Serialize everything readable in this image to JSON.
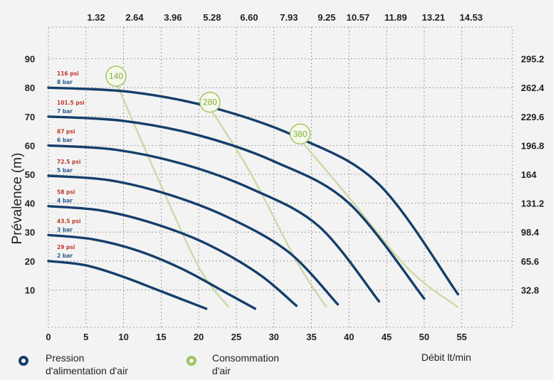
{
  "chart_data": {
    "type": "line",
    "xlabel": "Débit lt/min",
    "ylabel": "Prévalence (m)",
    "xlim": [
      0,
      60
    ],
    "ylim": [
      0,
      95
    ],
    "x_ticks": [
      0,
      5,
      10,
      15,
      20,
      25,
      30,
      35,
      40,
      45,
      50,
      55
    ],
    "y_ticks": [
      10,
      20,
      30,
      40,
      50,
      60,
      70,
      80,
      90
    ],
    "top_axis_ticks": [
      "1.32",
      "2.64",
      "3.96",
      "5.28",
      "6.60",
      "7.93",
      "9.25",
      "10.57",
      "11.89",
      "13.21",
      "14.53"
    ],
    "right_axis_ticks": [
      "295.2",
      "262.4",
      "229.6",
      "196.8",
      "164",
      "131.2",
      "98.4",
      "65.6",
      "32.8"
    ],
    "right_axis_tick_values": [
      90,
      80,
      70,
      60,
      50,
      40,
      30,
      20,
      10
    ],
    "pressure_series": [
      {
        "psi": "29 psi",
        "bar": "2 bar",
        "x": [
          0,
          5,
          10,
          15,
          21
        ],
        "y": [
          20,
          18.5,
          14.5,
          9.5,
          3.5
        ]
      },
      {
        "psi": "43.5 psi",
        "bar": "3 bar",
        "x": [
          0,
          6,
          12,
          18,
          24,
          27.5
        ],
        "y": [
          29,
          27.5,
          23.5,
          17,
          8.5,
          3.5
        ]
      },
      {
        "psi": "58 psi",
        "bar": "4 bar",
        "x": [
          0,
          7,
          14,
          21,
          28,
          33
        ],
        "y": [
          39,
          37.5,
          33,
          26,
          15.5,
          4.5
        ]
      },
      {
        "psi": "72.5 psi",
        "bar": "5 bar",
        "x": [
          0,
          8,
          16,
          24,
          32,
          38.5
        ],
        "y": [
          49.5,
          48,
          43,
          35,
          23,
          5
        ]
      },
      {
        "psi": "87 psi",
        "bar": "6 bar",
        "x": [
          0,
          9,
          18,
          27,
          36,
          44
        ],
        "y": [
          60,
          58.5,
          53.5,
          45,
          32,
          6
        ]
      },
      {
        "psi": "101.5 psi",
        "bar": "7 bar",
        "x": [
          0,
          10,
          20,
          30,
          40,
          50
        ],
        "y": [
          70,
          68.5,
          63.5,
          54.5,
          40,
          7
        ]
      },
      {
        "psi": "116 psi",
        "bar": "8 bar",
        "x": [
          0,
          11,
          22,
          33,
          44,
          54.5
        ],
        "y": [
          80,
          78.5,
          73,
          63,
          46.5,
          8.5
        ]
      }
    ],
    "air_consumption_series": [
      {
        "label": "140",
        "x": [
          9,
          14,
          20,
          24
        ],
        "y": [
          82,
          52,
          18,
          4
        ]
      },
      {
        "label": "280",
        "x": [
          21.5,
          27,
          33,
          37
        ],
        "y": [
          73,
          50,
          20,
          4
        ]
      },
      {
        "label": "380",
        "x": [
          33.5,
          40,
          48,
          54.5
        ],
        "y": [
          62,
          42,
          17,
          4
        ]
      }
    ],
    "legend": [
      {
        "label_line1": "Pression",
        "label_line2": "d'alimentation d'air",
        "color": "#153f6b"
      },
      {
        "label_line1": "Consommation",
        "label_line2": "d'air",
        "color": "#9ec35a"
      }
    ],
    "grid": true,
    "colors": {
      "pressure_line": "#153f6b",
      "air_line": "#cfd8a6",
      "air_bubble": "#9ec35a",
      "psi_text": "#c0392b",
      "bar_text": "#2a5a8c",
      "grid": "#8a8a8a"
    }
  }
}
